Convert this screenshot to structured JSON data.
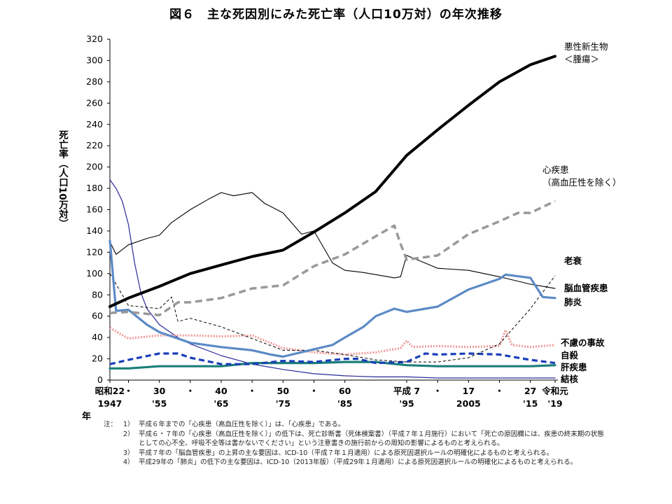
{
  "chart_data": {
    "type": "line",
    "title": "図６　主な死因別にみた死亡率（人口10万対）の年次推移",
    "ylabel": "死亡率（人口10万対）",
    "xlabel": "年",
    "ylim": [
      0,
      320
    ],
    "yticks": [
      0,
      20,
      40,
      60,
      80,
      100,
      120,
      140,
      160,
      180,
      200,
      220,
      240,
      260,
      280,
      300,
      320
    ],
    "xlim": [
      1947,
      2019
    ],
    "xtick_labels": [
      {
        "x": 1947,
        "top": "昭和22",
        "bottom": "1947"
      },
      {
        "x": 1950,
        "top": "・",
        "bottom": ""
      },
      {
        "x": 1955,
        "top": "30",
        "bottom": "'55"
      },
      {
        "x": 1960,
        "top": "・",
        "bottom": ""
      },
      {
        "x": 1965,
        "top": "40",
        "bottom": "'65"
      },
      {
        "x": 1970,
        "top": "・",
        "bottom": ""
      },
      {
        "x": 1975,
        "top": "50",
        "bottom": "'75"
      },
      {
        "x": 1980,
        "top": "・",
        "bottom": ""
      },
      {
        "x": 1985,
        "top": "60",
        "bottom": "'85"
      },
      {
        "x": 1995,
        "top": "平成 7",
        "bottom": "'95"
      },
      {
        "x": 2000,
        "top": "・",
        "bottom": ""
      },
      {
        "x": 2005,
        "top": "17",
        "bottom": "2005"
      },
      {
        "x": 2010,
        "top": "・",
        "bottom": ""
      },
      {
        "x": 2015,
        "top": "27",
        "bottom": "'15"
      },
      {
        "x": 2019,
        "top": "令和元",
        "bottom": "'19"
      }
    ],
    "grid": false,
    "series": [
      {
        "name": "悪性新生物＜腫瘍＞",
        "color": "#000000",
        "style": "bold-solid",
        "points": [
          [
            1947,
            69
          ],
          [
            1950,
            77
          ],
          [
            1955,
            88
          ],
          [
            1960,
            100
          ],
          [
            1965,
            108
          ],
          [
            1970,
            116
          ],
          [
            1975,
            122
          ],
          [
            1980,
            139
          ],
          [
            1985,
            157
          ],
          [
            1990,
            177
          ],
          [
            1995,
            211
          ],
          [
            2000,
            235
          ],
          [
            2005,
            258
          ],
          [
            2010,
            280
          ],
          [
            2015,
            296
          ],
          [
            2019,
            304
          ]
        ]
      },
      {
        "name": "心疾患（高血圧性を除く）",
        "color": "#999999",
        "style": "gray-dash",
        "points": [
          [
            1947,
            63
          ],
          [
            1950,
            64
          ],
          [
            1955,
            61
          ],
          [
            1958,
            73
          ],
          [
            1960,
            73
          ],
          [
            1965,
            77
          ],
          [
            1970,
            86
          ],
          [
            1975,
            89
          ],
          [
            1980,
            107
          ],
          [
            1985,
            118
          ],
          [
            1990,
            135
          ],
          [
            1993,
            145
          ],
          [
            1994,
            128
          ],
          [
            1995,
            113
          ],
          [
            2000,
            117
          ],
          [
            2005,
            137
          ],
          [
            2010,
            149
          ],
          [
            2013,
            157
          ],
          [
            2015,
            157
          ],
          [
            2019,
            168
          ]
        ]
      },
      {
        "name": "老衰",
        "color": "#000000",
        "style": "thin-dash",
        "points": [
          [
            1947,
            100
          ],
          [
            1950,
            70
          ],
          [
            1955,
            67
          ],
          [
            1957,
            78
          ],
          [
            1958,
            55
          ],
          [
            1960,
            58
          ],
          [
            1965,
            50
          ],
          [
            1970,
            39
          ],
          [
            1975,
            28
          ],
          [
            1980,
            28
          ],
          [
            1985,
            24
          ],
          [
            1990,
            19
          ],
          [
            1995,
            17
          ],
          [
            2000,
            17
          ],
          [
            2005,
            21
          ],
          [
            2010,
            34
          ],
          [
            2015,
            67
          ],
          [
            2019,
            98
          ]
        ]
      },
      {
        "name": "脳血管疾患",
        "color": "#000000",
        "style": "thin-solid",
        "points": [
          [
            1947,
            130
          ],
          [
            1948,
            118
          ],
          [
            1950,
            127
          ],
          [
            1953,
            133
          ],
          [
            1955,
            136
          ],
          [
            1957,
            148
          ],
          [
            1960,
            160
          ],
          [
            1963,
            170
          ],
          [
            1965,
            176
          ],
          [
            1967,
            173
          ],
          [
            1970,
            176
          ],
          [
            1972,
            166
          ],
          [
            1975,
            157
          ],
          [
            1978,
            137
          ],
          [
            1980,
            140
          ],
          [
            1983,
            110
          ],
          [
            1985,
            103
          ],
          [
            1988,
            101
          ],
          [
            1990,
            99
          ],
          [
            1993,
            96
          ],
          [
            1994,
            97
          ],
          [
            1995,
            117
          ],
          [
            2000,
            105
          ],
          [
            2005,
            103
          ],
          [
            2010,
            97
          ],
          [
            2015,
            90
          ],
          [
            2019,
            86
          ]
        ]
      },
      {
        "name": "肺炎",
        "color": "#5b8ac6",
        "style": "blue-solid",
        "points": [
          [
            1947,
            131
          ],
          [
            1948,
            65
          ],
          [
            1950,
            66
          ],
          [
            1953,
            52
          ],
          [
            1955,
            45
          ],
          [
            1960,
            35
          ],
          [
            1965,
            31
          ],
          [
            1970,
            28
          ],
          [
            1973,
            24
          ],
          [
            1975,
            22
          ],
          [
            1980,
            29
          ],
          [
            1983,
            33
          ],
          [
            1985,
            40
          ],
          [
            1988,
            50
          ],
          [
            1990,
            60
          ],
          [
            1993,
            67
          ],
          [
            1995,
            64
          ],
          [
            2000,
            69
          ],
          [
            2005,
            85
          ],
          [
            2010,
            95
          ],
          [
            2011,
            99
          ],
          [
            2015,
            96
          ],
          [
            2017,
            78
          ],
          [
            2019,
            77
          ]
        ]
      },
      {
        "name": "不慮の事故",
        "color": "#f29c9c",
        "style": "pink-dotted",
        "points": [
          [
            1947,
            49
          ],
          [
            1950,
            39
          ],
          [
            1955,
            42
          ],
          [
            1960,
            42
          ],
          [
            1965,
            41
          ],
          [
            1970,
            42
          ],
          [
            1975,
            30
          ],
          [
            1980,
            26
          ],
          [
            1985,
            24
          ],
          [
            1990,
            26
          ],
          [
            1994,
            30
          ],
          [
            1995,
            37
          ],
          [
            1996,
            31
          ],
          [
            2000,
            32
          ],
          [
            2005,
            31
          ],
          [
            2010,
            32
          ],
          [
            2011,
            47
          ],
          [
            2012,
            33
          ],
          [
            2015,
            31
          ],
          [
            2019,
            33
          ]
        ]
      },
      {
        "name": "自殺",
        "color": "#1a3fb8",
        "style": "blue-dash",
        "points": [
          [
            1947,
            15
          ],
          [
            1950,
            19
          ],
          [
            1955,
            25
          ],
          [
            1958,
            25
          ],
          [
            1960,
            21
          ],
          [
            1965,
            15
          ],
          [
            1970,
            15
          ],
          [
            1975,
            18
          ],
          [
            1980,
            17
          ],
          [
            1985,
            20
          ],
          [
            1987,
            20
          ],
          [
            1990,
            16
          ],
          [
            1995,
            17
          ],
          [
            1998,
            25
          ],
          [
            2000,
            24
          ],
          [
            2005,
            25
          ],
          [
            2010,
            24
          ],
          [
            2012,
            22
          ],
          [
            2015,
            19
          ],
          [
            2019,
            16
          ]
        ]
      },
      {
        "name": "肝疾患",
        "color": "#1b7f7a",
        "style": "teal-solid",
        "points": [
          [
            1947,
            11
          ],
          [
            1950,
            11
          ],
          [
            1955,
            13
          ],
          [
            1960,
            13
          ],
          [
            1965,
            13
          ],
          [
            1970,
            16
          ],
          [
            1975,
            16
          ],
          [
            1980,
            16
          ],
          [
            1985,
            17
          ],
          [
            1990,
            17
          ],
          [
            1995,
            14
          ],
          [
            2000,
            13
          ],
          [
            2005,
            13
          ],
          [
            2010,
            13
          ],
          [
            2015,
            13
          ],
          [
            2019,
            14
          ]
        ]
      },
      {
        "name": "結核",
        "color": "#2a2a9a",
        "style": "navy-thin",
        "points": [
          [
            1947,
            188
          ],
          [
            1948,
            180
          ],
          [
            1949,
            168
          ],
          [
            1950,
            146
          ],
          [
            1951,
            110
          ],
          [
            1952,
            82
          ],
          [
            1953,
            67
          ],
          [
            1955,
            52
          ],
          [
            1958,
            40
          ],
          [
            1960,
            34
          ],
          [
            1965,
            23
          ],
          [
            1970,
            15
          ],
          [
            1975,
            10
          ],
          [
            1980,
            6
          ],
          [
            1985,
            4
          ],
          [
            1990,
            3
          ],
          [
            1995,
            3
          ],
          [
            2000,
            2
          ],
          [
            2005,
            2
          ],
          [
            2010,
            2
          ],
          [
            2019,
            2
          ]
        ]
      }
    ],
    "series_labels": [
      {
        "series": 0,
        "lines": [
          "悪性新生物",
          "＜腫瘍＞"
        ]
      },
      {
        "series": 1,
        "lines": [
          "心疾患",
          "（高血圧性を除く）"
        ]
      },
      {
        "series": 2,
        "lines": [
          "老衰"
        ]
      },
      {
        "series": 3,
        "lines": [
          "脳血管疾患"
        ]
      },
      {
        "series": 4,
        "lines": [
          "肺炎"
        ]
      },
      {
        "series": 5,
        "lines": [
          "不慮の事故"
        ]
      },
      {
        "series": 6,
        "lines": [
          "自殺"
        ]
      },
      {
        "series": 7,
        "lines": [
          "肝疾患"
        ]
      },
      {
        "series": 8,
        "lines": [
          "結核"
        ]
      }
    ]
  },
  "notes": {
    "head": "注：",
    "items": [
      {
        "num": "1）",
        "text": "平成６年までの「心疾患（高血圧性を除く）」は、「心疾患」である。"
      },
      {
        "num": "2）",
        "text": "平成６・７年の「心疾患（高血圧性を除く）」の低下は、死亡診断書（死体検案書）（平成７年１月施行）において「死亡の原因欄には、疾患の終末期の状態としての心不全、呼吸不全等は書かないでください」という注意書きの施行前からの周知の影響によるものと考えられる。"
      },
      {
        "num": "3）",
        "text": "平成７年の「脳血管疾患」の上昇の主な要因は、ICD-10（平成７年１月適用）による原死因選択ルールの明確化によるものと考えられる。"
      },
      {
        "num": "4）",
        "text": "平成29年の「肺炎」の低下の主な要因は、ICD-10（2013年版）（平成29年１月適用）による原死因選択ルールの明確化によるものと考えられる。"
      }
    ]
  }
}
